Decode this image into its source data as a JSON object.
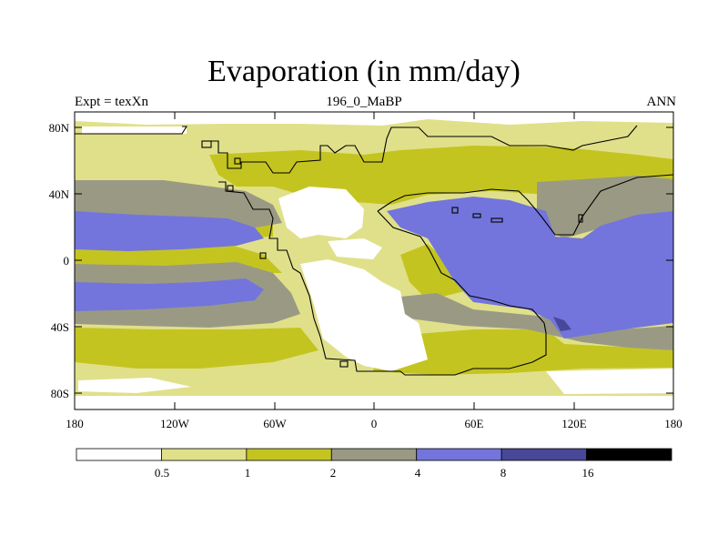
{
  "header": {
    "title": "Evaporation (in mm/day)",
    "left": "Expt = texXn",
    "center": "196_0_MaBP",
    "right": "ANN"
  },
  "axes": {
    "y_ticks": [
      "80N",
      "40N",
      "0",
      "40S",
      "80S"
    ],
    "x_ticks": [
      "180",
      "120W",
      "60W",
      "0",
      "60E",
      "120E",
      "180"
    ]
  },
  "colorbar": {
    "labels": [
      "0.5",
      "1",
      "2",
      "4",
      "8",
      "16"
    ],
    "colors": [
      "#ffffff",
      "#e0e08a",
      "#c4c421",
      "#9a9a84",
      "#7375dc",
      "#484898",
      "#000000"
    ]
  },
  "colors": {
    "background": "#ffffff",
    "under_half": "#ffffff",
    "half_to_1": "#e0e08a",
    "1_to_2": "#c4c421",
    "2_to_4": "#9a9a84",
    "4_to_8": "#7375dc",
    "8_to_16": "#484898"
  }
}
